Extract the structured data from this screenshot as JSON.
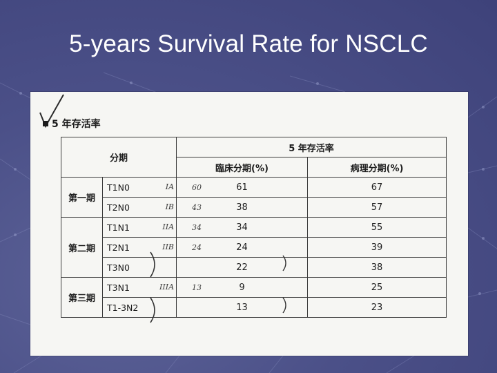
{
  "slide": {
    "title": "5-years Survival Rate for NSCLC"
  },
  "document": {
    "heading": "5 年存活率",
    "table": {
      "col_stage": "分期",
      "col_group": "5 年存活率",
      "col_clinical": "臨床分期(%)",
      "col_pathological": "病理分期(%)",
      "groups": [
        {
          "stage": "第一期",
          "rows": [
            {
              "tnm": "T1N0",
              "tnm_note": "IA",
              "clinical": "61",
              "clinical_note": "60",
              "pathological": "67"
            },
            {
              "tnm": "T2N0",
              "tnm_note": "IB",
              "clinical": "38",
              "clinical_note": "43",
              "pathological": "57"
            }
          ]
        },
        {
          "stage": "第二期",
          "rows": [
            {
              "tnm": "T1N1",
              "tnm_note": "IIA",
              "clinical": "34",
              "clinical_note": "34",
              "pathological": "55"
            },
            {
              "tnm": "T2N1",
              "tnm_note": "IIB",
              "clinical": "24",
              "clinical_note": "24",
              "pathological": "39"
            },
            {
              "tnm": "T3N0",
              "tnm_note": "",
              "clinical": "22",
              "clinical_note": "",
              "pathological": "38"
            }
          ]
        },
        {
          "stage": "第三期",
          "rows": [
            {
              "tnm": "T3N1",
              "tnm_note": "IIIA",
              "clinical": "9",
              "clinical_note": "13",
              "pathological": "25"
            },
            {
              "tnm": "T1-3N2",
              "tnm_note": "",
              "clinical": "13",
              "clinical_note": "",
              "pathological": "23"
            }
          ]
        }
      ]
    }
  }
}
